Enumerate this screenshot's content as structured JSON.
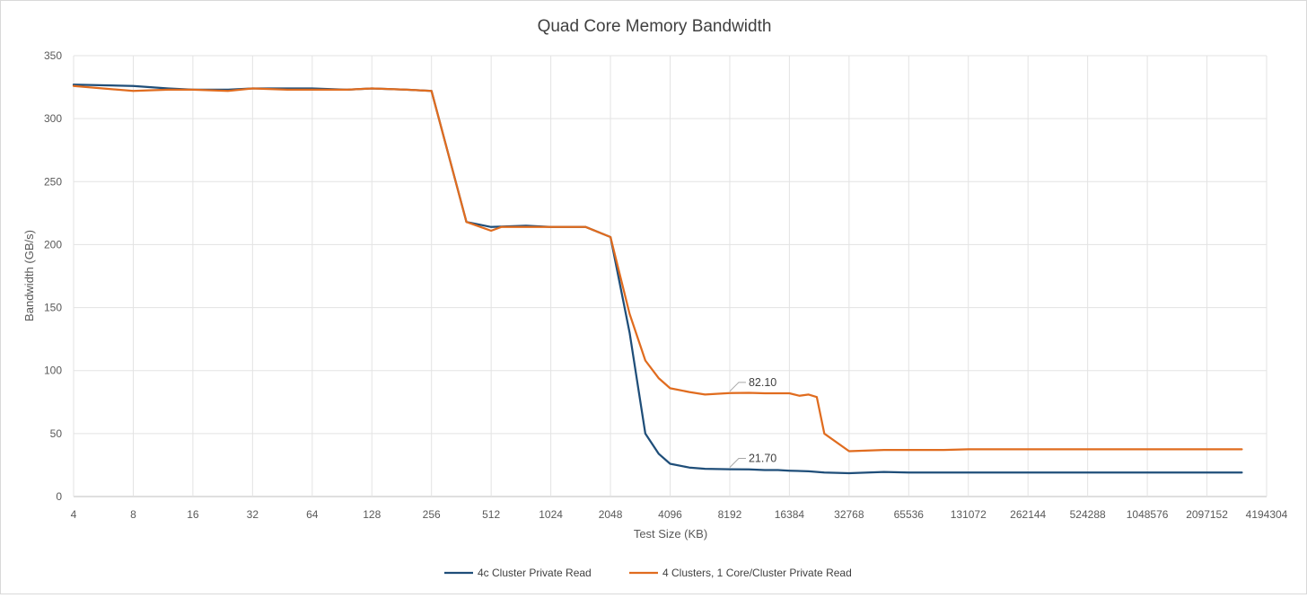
{
  "chart_data": {
    "type": "line",
    "title": "Quad Core Memory Bandwidth",
    "xlabel": "Test Size (KB)",
    "ylabel": "Bandwidth (GB/s)",
    "ylim": [
      0,
      350
    ],
    "yticks": [
      0,
      50,
      100,
      150,
      200,
      250,
      300,
      350
    ],
    "xscale": "log2",
    "xlim": [
      4,
      4194304
    ],
    "xticks": [
      "4",
      "8",
      "16",
      "32",
      "64",
      "128",
      "256",
      "512",
      "1024",
      "2048",
      "4096",
      "8192",
      "16384",
      "32768",
      "65536",
      "131072",
      "262144",
      "524288",
      "1048576",
      "2097152",
      "4194304"
    ],
    "grid": "vertical and horizontal",
    "legend": "bottom",
    "series": [
      {
        "name": "4c Cluster Private Read",
        "color": "#1f4e79",
        "x": [
          4,
          8,
          12,
          16,
          24,
          32,
          48,
          64,
          96,
          128,
          192,
          256,
          384,
          512,
          768,
          1024,
          1536,
          2048,
          2560,
          3072,
          3584,
          4096,
          5120,
          6144,
          8192,
          10240,
          12288,
          14336,
          16384,
          20480,
          24576,
          32768,
          49152,
          65536,
          98304,
          131072,
          262144,
          524288,
          1048576,
          2097152,
          3145728
        ],
        "values": [
          327,
          326,
          324,
          323,
          323,
          324,
          324,
          324,
          323,
          324,
          323,
          322,
          218,
          214,
          215,
          214,
          214,
          206,
          130,
          50,
          34,
          26,
          23,
          22,
          21.7,
          21.5,
          21,
          21,
          20.5,
          20,
          19,
          18.5,
          19.5,
          19,
          19,
          19,
          19,
          19,
          19,
          19,
          19
        ]
      },
      {
        "name": "4 Clusters, 1 Core/Cluster Private Read",
        "color": "#e06c1f",
        "x": [
          4,
          8,
          12,
          16,
          24,
          32,
          48,
          64,
          96,
          128,
          192,
          256,
          384,
          512,
          576,
          640,
          768,
          1024,
          1536,
          2048,
          2560,
          3072,
          3584,
          4096,
          5120,
          6144,
          8192,
          10240,
          12288,
          14336,
          16384,
          18432,
          20480,
          22528,
          24576,
          32768,
          49152,
          65536,
          98304,
          131072,
          262144,
          524288,
          1048576,
          2097152,
          3145728
        ],
        "values": [
          326,
          322,
          323,
          323,
          322,
          324,
          323,
          323,
          323,
          324,
          323,
          322,
          218,
          211,
          214,
          214,
          214,
          214,
          214,
          206,
          145,
          108,
          94,
          86,
          83,
          81,
          82.1,
          82.3,
          82,
          82,
          82,
          80,
          81,
          79,
          50,
          36,
          37,
          37,
          37,
          37.5,
          37.5,
          37.5,
          37.5,
          37.5,
          37.5
        ]
      }
    ],
    "annotations": [
      {
        "text": "82.10",
        "series": 1,
        "x": 8192,
        "y": 82.1
      },
      {
        "text": "21.70",
        "series": 0,
        "x": 8192,
        "y": 21.7
      }
    ]
  }
}
